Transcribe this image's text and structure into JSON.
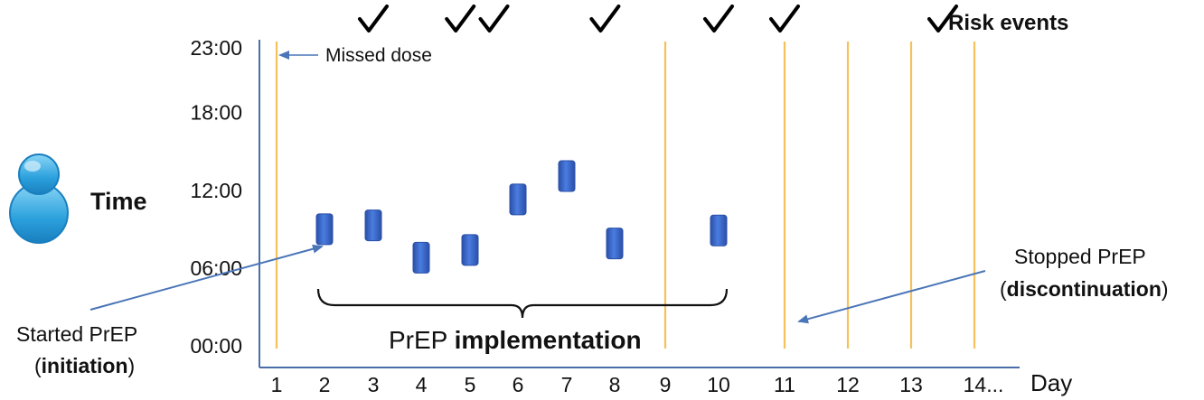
{
  "chart_data": {
    "type": "scatter",
    "ylabel": "Time",
    "xlabel": "Day",
    "x_ticks": [
      "1",
      "2",
      "3",
      "4",
      "5",
      "6",
      "7",
      "8",
      "9",
      "10",
      "11",
      "12",
      "13",
      "14..."
    ],
    "y_ticks": [
      "00:00",
      "06:00",
      "12:00",
      "18:00",
      "23:00"
    ],
    "y_tick_values": [
      0,
      6,
      12,
      18,
      23
    ],
    "ylim": [
      0,
      23
    ],
    "dose_times": [
      {
        "day": 2,
        "time": 9.0
      },
      {
        "day": 3,
        "time": 9.3
      },
      {
        "day": 4,
        "time": 6.8
      },
      {
        "day": 5,
        "time": 7.4
      },
      {
        "day": 6,
        "time": 11.3
      },
      {
        "day": 7,
        "time": 13.1
      },
      {
        "day": 8,
        "time": 7.9
      },
      {
        "day": 10,
        "time": 8.9
      }
    ],
    "missed_dose_days": [
      1,
      9,
      11,
      12,
      13,
      14
    ],
    "risk_event_days": [
      3,
      4.8,
      5.5,
      7.8,
      10,
      11,
      13.5
    ],
    "risk_events_label": "Risk events",
    "missed_dose_label": "Missed dose",
    "started_label": "Started PrEP",
    "initiation_label": "initiation",
    "implementation_prefix": "PrEP",
    "implementation_bold": "implementation",
    "stopped_label": "Stopped PrEP",
    "discontinuation_label": "discontinuation",
    "colors": {
      "dose": "#3a66c4",
      "dose_dark": "#2a4fa8",
      "missed_line": "#f5c15a",
      "axis": "#4a6ea8",
      "arrow": "#4a75b8",
      "person": "#2aa0dc"
    }
  }
}
